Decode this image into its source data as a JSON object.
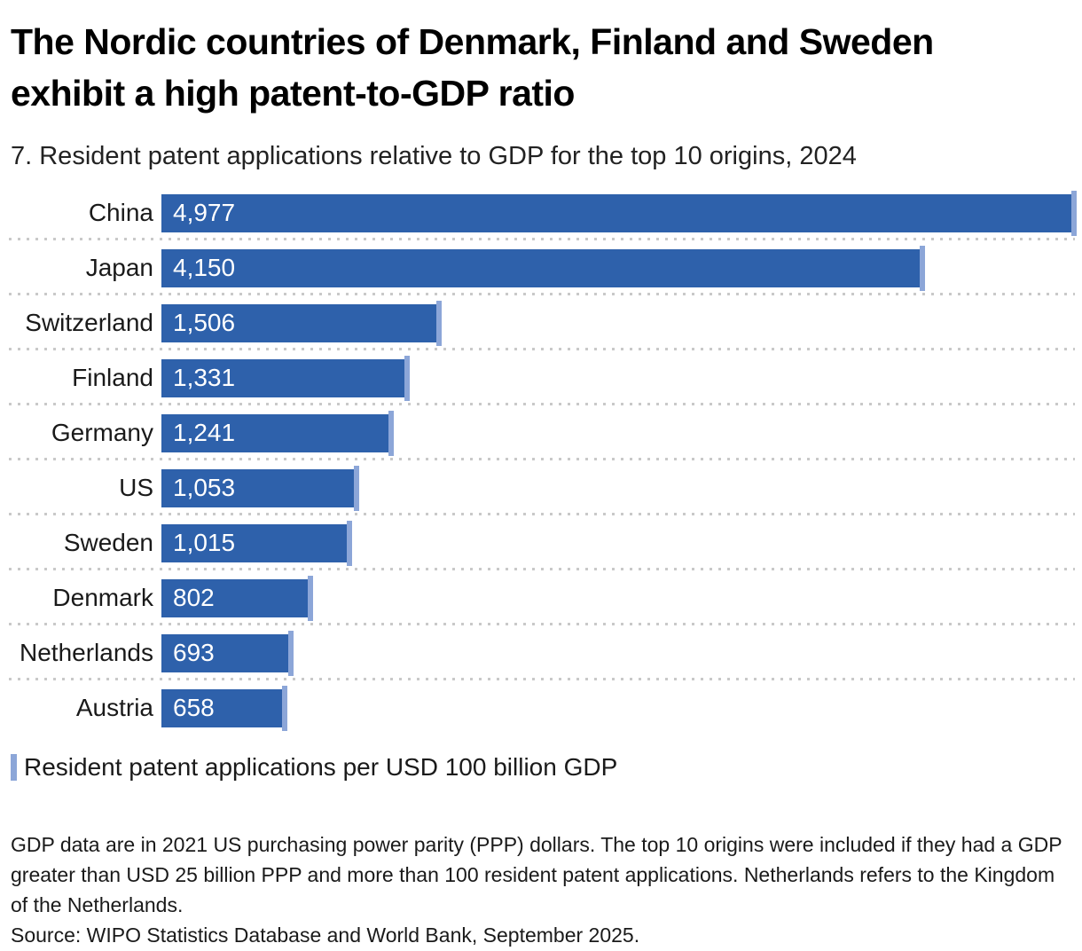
{
  "header": {
    "title_lines": [
      "The Nordic countries of Denmark, Finland and Sweden",
      "exhibit a high patent-to-GDP ratio"
    ],
    "subtitle": "7. Resident patent applications relative to GDP for the top 10 origins, 2024"
  },
  "chart_data": {
    "type": "bar",
    "orientation": "horizontal",
    "title": "7. Resident patent applications relative to GDP for the top 10 origins, 2024",
    "categories": [
      "China",
      "Japan",
      "Switzerland",
      "Finland",
      "Germany",
      "US",
      "Sweden",
      "Denmark",
      "Netherlands",
      "Austria"
    ],
    "values": [
      4977,
      4150,
      1506,
      1331,
      1241,
      1053,
      1015,
      802,
      693,
      658
    ],
    "value_labels": [
      "4,977",
      "4,150",
      "1,506",
      "1,331",
      "1,241",
      "1,053",
      "1,015",
      "802",
      "693",
      "658"
    ],
    "xlabel": "",
    "ylabel": "",
    "xlim": [
      0,
      4977
    ],
    "grid": "dotted row separators",
    "legend_position": "bottom-left",
    "legend_entries": [
      "Resident patent applications per USD 100 billion GDP"
    ],
    "bar_color": "#2e61ab",
    "bar_cap_color": "#8ca6d8",
    "separator_color": "#c9c9c9",
    "value_label_color": "#ffffff"
  },
  "legend": {
    "label": "Resident patent applications per USD 100 billion GDP",
    "marker_color": "#8ca6d8"
  },
  "footer": {
    "note": "GDP data are in 2021 US purchasing power parity (PPP) dollars. The top 10 origins were included if they had a GDP greater than USD 25 billion PPP and more than 100 resident patent applications. Netherlands refers to the Kingdom of the Netherlands.",
    "source": "Source: WIPO Statistics Database and World Bank, September 2025."
  }
}
